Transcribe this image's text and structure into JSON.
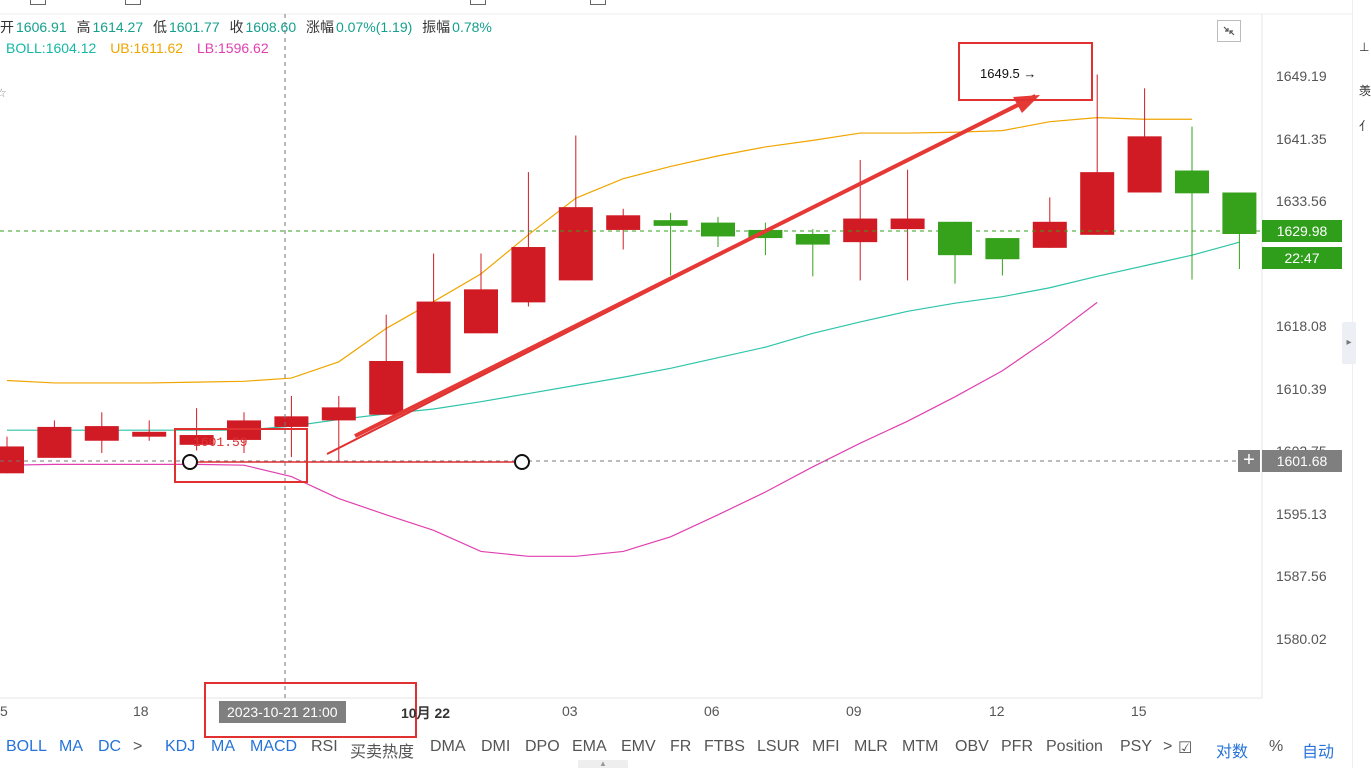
{
  "ohlc": {
    "open_label": "开",
    "open": "1606.91",
    "high_label": "高",
    "high": "1614.27",
    "low_label": "低",
    "low": "1601.77",
    "close_label": "收",
    "close": "1608.60",
    "change_label": "涨幅",
    "change": "0.07%(1.19)",
    "amp_label": "振幅",
    "amp": "0.78%"
  },
  "boll_legend": {
    "boll": "BOLL:1604.12",
    "ub": "UB:1611.62",
    "lb": "LB:1596.62",
    "colors": {
      "boll": "#14b8a6",
      "ub": "#f0a500",
      "lb": "#e040b0"
    }
  },
  "y_axis": [
    "1649.19",
    "1641.35",
    "1633.56",
    "1618.08",
    "1610.39",
    "1602.75",
    "1595.13",
    "1587.56",
    "1580.02"
  ],
  "x_axis": [
    {
      "label": "5"
    },
    {
      "label": "18"
    },
    {
      "label": "10月 22",
      "bold": true
    },
    {
      "label": "03"
    },
    {
      "label": "06"
    },
    {
      "label": "09"
    },
    {
      "label": "12"
    },
    {
      "label": "15"
    }
  ],
  "last_price": "1629.98",
  "countdown": "22:47",
  "crosshair_price": "1601.68",
  "crosshair_date": "2023-10-21 21:00",
  "annotations": {
    "horizontal_line_label": "1601.59",
    "high_marker_label": "1649.5"
  },
  "chart_data": {
    "type": "candlestick",
    "ylim": [
      1575,
      1655
    ],
    "candles": [
      {
        "o": 1600.5,
        "h": 1605.0,
        "c": 1603.8,
        "l": 1600.5,
        "up": true
      },
      {
        "o": 1602.4,
        "h": 1607.0,
        "c": 1606.2,
        "l": 1602.4,
        "up": true
      },
      {
        "o": 1604.5,
        "h": 1608.0,
        "c": 1606.3,
        "l": 1603.0,
        "up": true
      },
      {
        "o": 1605.0,
        "h": 1607.0,
        "c": 1605.6,
        "l": 1604.5,
        "up": true
      },
      {
        "o": 1604.0,
        "h": 1608.5,
        "c": 1605.2,
        "l": 1603.3,
        "up": true
      },
      {
        "o": 1604.6,
        "h": 1608.0,
        "c": 1607.0,
        "l": 1603.0,
        "up": true
      },
      {
        "o": 1606.2,
        "h": 1610.0,
        "c": 1607.5,
        "l": 1602.5,
        "up": true
      },
      {
        "o": 1607.0,
        "h": 1610.0,
        "c": 1608.6,
        "l": 1601.8,
        "up": true
      },
      {
        "o": 1607.7,
        "h": 1620.0,
        "c": 1614.3,
        "l": 1607.7,
        "up": true
      },
      {
        "o": 1612.8,
        "h": 1627.5,
        "c": 1621.6,
        "l": 1612.8,
        "up": true
      },
      {
        "o": 1617.7,
        "h": 1627.5,
        "c": 1623.1,
        "l": 1617.7,
        "up": true
      },
      {
        "o": 1621.5,
        "h": 1637.5,
        "c": 1628.3,
        "l": 1621.0,
        "up": true
      },
      {
        "o": 1624.2,
        "h": 1642.0,
        "c": 1633.2,
        "l": 1624.2,
        "up": true
      },
      {
        "o": 1630.4,
        "h": 1633.0,
        "c": 1632.2,
        "l": 1628.0,
        "up": true
      },
      {
        "o": 1631.6,
        "h": 1632.5,
        "c": 1630.9,
        "l": 1624.8,
        "up": false
      },
      {
        "o": 1631.3,
        "h": 1632.0,
        "c": 1629.6,
        "l": 1628.3,
        "up": false
      },
      {
        "o": 1630.4,
        "h": 1631.3,
        "c": 1629.4,
        "l": 1627.3,
        "up": false
      },
      {
        "o": 1629.9,
        "h": 1630.5,
        "c": 1628.6,
        "l": 1624.7,
        "up": false
      },
      {
        "o": 1628.9,
        "h": 1639.0,
        "c": 1631.8,
        "l": 1624.2,
        "up": true
      },
      {
        "o": 1630.5,
        "h": 1637.8,
        "c": 1631.8,
        "l": 1624.2,
        "up": true
      },
      {
        "o": 1631.4,
        "h": 1631.4,
        "c": 1627.3,
        "l": 1623.8,
        "up": false
      },
      {
        "o": 1629.4,
        "h": 1629.4,
        "c": 1626.8,
        "l": 1624.8,
        "up": false
      },
      {
        "o": 1628.2,
        "h": 1634.4,
        "c": 1631.4,
        "l": 1628.2,
        "up": true
      },
      {
        "o": 1629.8,
        "h": 1649.5,
        "c": 1637.5,
        "l": 1629.8,
        "up": true
      },
      {
        "o": 1635.0,
        "h": 1647.8,
        "c": 1641.9,
        "l": 1635.0,
        "up": true
      },
      {
        "o": 1637.7,
        "h": 1643.1,
        "c": 1634.9,
        "l": 1624.3,
        "up": false
      },
      {
        "o": 1635.0,
        "h": 1635.0,
        "c": 1629.9,
        "l": 1625.6,
        "up": false
      }
    ],
    "ub": [
      1611.9,
      1611.6,
      1611.6,
      1611.6,
      1611.7,
      1611.8,
      1612.2,
      1614.2,
      1618.3,
      1621.6,
      1625.0,
      1629.8,
      1634.3,
      1636.7,
      1638.2,
      1639.5,
      1640.6,
      1641.4,
      1642.3,
      1642.3,
      1642.4,
      1642.6,
      1643.7,
      1644.2,
      1644.0,
      1644.0
    ],
    "mid": [
      1605.8,
      1605.8,
      1605.8,
      1605.8,
      1605.8,
      1605.8,
      1606.3,
      1607.1,
      1607.8,
      1608.4,
      1609.3,
      1610.3,
      1611.3,
      1612.3,
      1613.4,
      1614.7,
      1616.0,
      1617.7,
      1619.1,
      1620.4,
      1621.4,
      1622.2,
      1623.3,
      1624.7,
      1626.0,
      1627.3,
      1628.9
    ],
    "lb": [
      1601.5,
      1601.6,
      1601.6,
      1601.6,
      1601.6,
      1601.5,
      1600.1,
      1597.4,
      1595.4,
      1593.5,
      1590.9,
      1590.3,
      1590.3,
      1590.9,
      1592.7,
      1595.4,
      1598.2,
      1601.3,
      1604.2,
      1606.9,
      1609.9,
      1613.1,
      1617.1,
      1621.5
    ],
    "ub_start_index": 0,
    "lb_start_index": 0
  },
  "toolbar_indicators_left": [
    "BOLL",
    "MA",
    "DC"
  ],
  "toolbar_indicators": [
    "KDJ",
    "MA",
    "MACD",
    "RSI",
    "买卖热度",
    "DMA",
    "DMI",
    "DPO",
    "EMA",
    "EMV",
    "FR",
    "FTBS",
    "LSUR",
    "MFI",
    "MLR",
    "MTM",
    "OBV",
    "PFR",
    "Position",
    "PSY"
  ],
  "toolbar_right": {
    "log": "对数",
    "pct": "%",
    "auto": "自动"
  },
  "icons": {
    "expand": "expand-icon",
    "arrow_right": "chevron-right-icon",
    "edit": "edit-icon"
  }
}
